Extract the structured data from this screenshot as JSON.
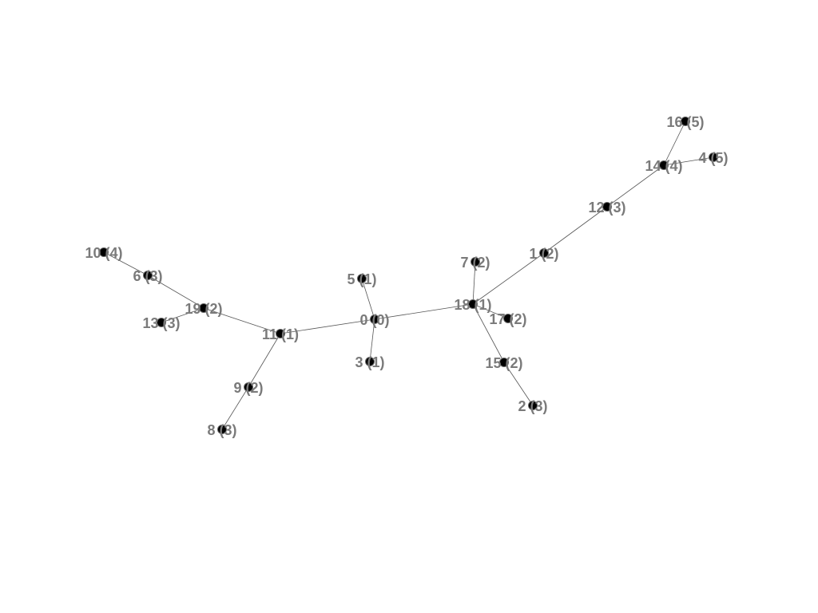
{
  "graph": {
    "nodes": [
      {
        "id": "0",
        "label": "0 (0)"
      },
      {
        "id": "1",
        "label": "1 (2)"
      },
      {
        "id": "2",
        "label": "2 (3)"
      },
      {
        "id": "3",
        "label": "3 (1)"
      },
      {
        "id": "4",
        "label": "4 (5)"
      },
      {
        "id": "5",
        "label": "5 (1)"
      },
      {
        "id": "6",
        "label": "6 (3)"
      },
      {
        "id": "7",
        "label": "7 (2)"
      },
      {
        "id": "8",
        "label": "8 (3)"
      },
      {
        "id": "9",
        "label": "9 (2)"
      },
      {
        "id": "10",
        "label": "10 (4)"
      },
      {
        "id": "11",
        "label": "11 (1)"
      },
      {
        "id": "12",
        "label": "12 (3)"
      },
      {
        "id": "13",
        "label": "13 (3)"
      },
      {
        "id": "14",
        "label": "14 (4)"
      },
      {
        "id": "15",
        "label": "15 (2)"
      },
      {
        "id": "16",
        "label": "16 (5)"
      },
      {
        "id": "17",
        "label": "17 (2)"
      },
      {
        "id": "18",
        "label": "18 (1)"
      },
      {
        "id": "19",
        "label": "19 (2)"
      }
    ],
    "edges": [
      [
        "0",
        "5"
      ],
      [
        "0",
        "3"
      ],
      [
        "0",
        "11"
      ],
      [
        "0",
        "18"
      ],
      [
        "11",
        "19"
      ],
      [
        "11",
        "9"
      ],
      [
        "9",
        "8"
      ],
      [
        "19",
        "6"
      ],
      [
        "19",
        "13"
      ],
      [
        "6",
        "10"
      ],
      [
        "18",
        "7"
      ],
      [
        "18",
        "17"
      ],
      [
        "18",
        "15"
      ],
      [
        "18",
        "1"
      ],
      [
        "15",
        "2"
      ],
      [
        "1",
        "12"
      ],
      [
        "12",
        "14"
      ],
      [
        "14",
        "16"
      ],
      [
        "14",
        "4"
      ]
    ]
  }
}
